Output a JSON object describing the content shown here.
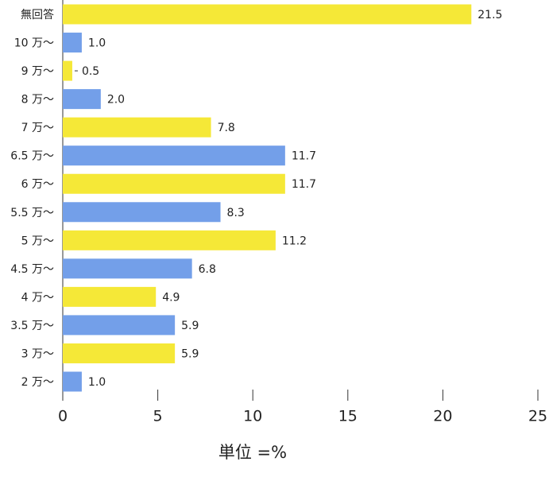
{
  "chart_data": {
    "type": "barh",
    "categories": [
      "無回答",
      "10 万〜",
      "9 万〜",
      "8 万〜",
      "7 万〜",
      "6.5 万〜",
      "6 万〜",
      "5.5 万〜",
      "5 万〜",
      "4.5 万〜",
      "4 万〜",
      "3.5 万〜",
      "3 万〜",
      "2 万〜"
    ],
    "values": [
      21.5,
      1,
      0.5,
      2,
      7.8,
      11.7,
      11.7,
      8.3,
      11.2,
      6.8,
      4.9,
      5.9,
      5.9,
      1
    ],
    "value_labels": [
      "21.5",
      "1.0",
      "0.5",
      "2.0",
      "7.8",
      "11.7",
      "11.7",
      "8.3",
      "11.2",
      "6.8",
      "4.9",
      "5.9",
      "5.9",
      "1.0"
    ],
    "colors": [
      "#f5e837",
      "#739fe9",
      "#f5e837",
      "#739fe9",
      "#f5e837",
      "#739fe9",
      "#f5e837",
      "#739fe9",
      "#f5e837",
      "#739fe9",
      "#f5e837",
      "#739fe9",
      "#f5e837",
      "#739fe9"
    ],
    "xlim": [
      0,
      25
    ],
    "xticks": [
      0,
      5,
      10,
      15,
      20,
      25
    ],
    "xlabel": "単位 =%"
  }
}
